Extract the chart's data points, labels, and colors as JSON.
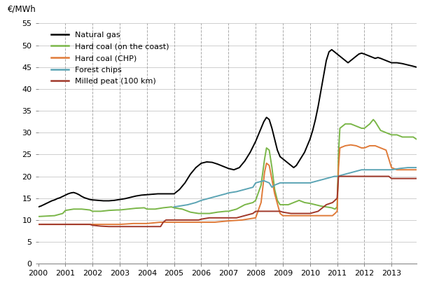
{
  "ylabel": "€/MWh",
  "xlim": [
    2000,
    2013.92
  ],
  "ylim": [
    0,
    55
  ],
  "yticks": [
    0,
    5,
    10,
    15,
    20,
    25,
    30,
    35,
    40,
    45,
    50,
    55
  ],
  "xticks": [
    2000,
    2001,
    2002,
    2003,
    2004,
    2005,
    2006,
    2007,
    2008,
    2009,
    2010,
    2011,
    2012,
    2013
  ],
  "series": {
    "Natural gas": {
      "color": "#000000",
      "lw": 1.4,
      "data_x": [
        2000.0,
        2000.1,
        2000.2,
        2000.3,
        2000.4,
        2000.5,
        2000.6,
        2000.7,
        2000.8,
        2000.9,
        2001.0,
        2001.1,
        2001.2,
        2001.3,
        2001.4,
        2001.5,
        2001.6,
        2001.7,
        2001.8,
        2001.9,
        2002.0,
        2002.2,
        2002.4,
        2002.6,
        2002.8,
        2003.0,
        2003.2,
        2003.4,
        2003.6,
        2003.8,
        2004.0,
        2004.2,
        2004.4,
        2004.6,
        2004.8,
        2005.0,
        2005.2,
        2005.4,
        2005.5,
        2005.6,
        2005.8,
        2006.0,
        2006.2,
        2006.4,
        2006.6,
        2006.8,
        2007.0,
        2007.2,
        2007.4,
        2007.6,
        2007.8,
        2008.0,
        2008.1,
        2008.2,
        2008.3,
        2008.4,
        2008.5,
        2008.6,
        2008.7,
        2008.8,
        2008.9,
        2009.0,
        2009.1,
        2009.2,
        2009.3,
        2009.4,
        2009.5,
        2009.6,
        2009.7,
        2009.8,
        2009.9,
        2010.0,
        2010.1,
        2010.2,
        2010.3,
        2010.4,
        2010.5,
        2010.6,
        2010.7,
        2010.8,
        2010.9,
        2011.0,
        2011.1,
        2011.2,
        2011.3,
        2011.4,
        2011.5,
        2011.6,
        2011.7,
        2011.8,
        2011.9,
        2012.0,
        2012.2,
        2012.4,
        2012.5,
        2012.6,
        2012.8,
        2013.0,
        2013.2,
        2013.4,
        2013.6,
        2013.8,
        2013.92
      ],
      "data_y": [
        13.0,
        13.2,
        13.5,
        13.8,
        14.1,
        14.4,
        14.6,
        14.9,
        15.1,
        15.4,
        15.7,
        16.0,
        16.2,
        16.3,
        16.1,
        15.8,
        15.4,
        15.1,
        14.9,
        14.7,
        14.6,
        14.5,
        14.4,
        14.4,
        14.5,
        14.7,
        14.9,
        15.2,
        15.5,
        15.7,
        15.8,
        15.9,
        16.0,
        16.0,
        16.0,
        16.0,
        17.0,
        18.5,
        19.5,
        20.5,
        22.0,
        23.0,
        23.3,
        23.2,
        22.8,
        22.3,
        21.8,
        21.5,
        22.0,
        23.5,
        25.5,
        28.0,
        29.5,
        31.0,
        32.5,
        33.5,
        33.0,
        31.0,
        28.5,
        26.0,
        24.5,
        24.0,
        23.5,
        23.0,
        22.5,
        22.0,
        22.5,
        23.5,
        24.5,
        25.5,
        27.0,
        28.5,
        30.5,
        33.0,
        36.0,
        39.5,
        43.0,
        46.5,
        48.5,
        49.0,
        48.5,
        48.0,
        47.5,
        47.0,
        46.5,
        46.0,
        46.5,
        47.0,
        47.5,
        48.0,
        48.2,
        48.0,
        47.5,
        47.0,
        47.2,
        47.0,
        46.5,
        46.0,
        46.0,
        45.8,
        45.5,
        45.2,
        45.0
      ]
    },
    "Hard coal (on the coast)": {
      "color": "#7ab648",
      "lw": 1.4,
      "data_x": [
        2000.0,
        2000.3,
        2000.6,
        2000.9,
        2001.0,
        2001.3,
        2001.6,
        2001.9,
        2002.0,
        2002.3,
        2002.6,
        2002.9,
        2003.0,
        2003.3,
        2003.6,
        2003.9,
        2004.0,
        2004.3,
        2004.6,
        2004.9,
        2005.0,
        2005.3,
        2005.6,
        2005.9,
        2006.0,
        2006.3,
        2006.6,
        2006.9,
        2007.0,
        2007.3,
        2007.6,
        2007.9,
        2008.0,
        2008.2,
        2008.33,
        2008.4,
        2008.5,
        2008.6,
        2008.7,
        2008.8,
        2008.9,
        2009.0,
        2009.2,
        2009.4,
        2009.6,
        2009.8,
        2010.0,
        2010.2,
        2010.4,
        2010.6,
        2010.8,
        2010.92,
        2011.0,
        2011.05,
        2011.1,
        2011.3,
        2011.5,
        2011.7,
        2011.9,
        2012.0,
        2012.2,
        2012.33,
        2012.4,
        2012.5,
        2012.6,
        2012.8,
        2013.0,
        2013.2,
        2013.4,
        2013.6,
        2013.8,
        2013.92
      ],
      "data_y": [
        10.8,
        10.9,
        11.0,
        11.5,
        12.2,
        12.5,
        12.5,
        12.3,
        12.0,
        12.0,
        12.2,
        12.3,
        12.3,
        12.5,
        12.7,
        12.8,
        12.5,
        12.5,
        12.8,
        13.0,
        12.8,
        12.5,
        11.8,
        11.5,
        11.5,
        11.5,
        11.8,
        12.0,
        12.0,
        12.5,
        13.5,
        14.0,
        14.5,
        18.0,
        24.0,
        26.5,
        26.0,
        22.0,
        17.0,
        14.5,
        13.5,
        13.5,
        13.5,
        14.0,
        14.5,
        14.0,
        13.8,
        13.5,
        13.2,
        13.0,
        12.8,
        12.5,
        13.0,
        25.0,
        31.0,
        32.0,
        32.0,
        31.5,
        31.0,
        31.0,
        32.0,
        33.0,
        32.5,
        31.5,
        30.5,
        30.0,
        29.5,
        29.5,
        29.0,
        29.0,
        29.0,
        28.5
      ]
    },
    "Hard coal (CHP)": {
      "color": "#e07b39",
      "lw": 1.4,
      "data_x": [
        2000.0,
        2000.5,
        2001.0,
        2001.5,
        2002.0,
        2002.5,
        2003.0,
        2003.5,
        2004.0,
        2004.5,
        2005.0,
        2005.5,
        2006.0,
        2006.5,
        2007.0,
        2007.5,
        2008.0,
        2008.2,
        2008.33,
        2008.4,
        2008.5,
        2008.7,
        2008.9,
        2009.0,
        2009.3,
        2009.6,
        2009.9,
        2010.0,
        2010.3,
        2010.6,
        2010.83,
        2010.92,
        2011.0,
        2011.05,
        2011.1,
        2011.3,
        2011.5,
        2011.7,
        2011.9,
        2012.0,
        2012.2,
        2012.4,
        2012.6,
        2012.8,
        2013.0,
        2013.2,
        2013.4,
        2013.6,
        2013.8,
        2013.92
      ],
      "data_y": [
        9.0,
        9.0,
        9.0,
        9.0,
        9.0,
        9.0,
        9.0,
        9.2,
        9.2,
        9.5,
        9.5,
        9.5,
        9.5,
        9.5,
        9.8,
        10.0,
        10.5,
        14.0,
        21.0,
        23.0,
        22.5,
        16.0,
        11.5,
        11.0,
        11.0,
        11.0,
        11.0,
        11.0,
        11.0,
        11.0,
        11.0,
        11.5,
        12.0,
        22.0,
        26.5,
        27.0,
        27.2,
        27.0,
        26.5,
        26.5,
        27.0,
        27.0,
        26.5,
        26.0,
        22.0,
        21.5,
        21.5,
        21.5,
        21.5,
        21.5
      ]
    },
    "Forest chips": {
      "color": "#5ba4b4",
      "lw": 1.4,
      "data_x": [
        2005.0,
        2005.2,
        2005.5,
        2005.8,
        2006.0,
        2006.3,
        2006.6,
        2006.9,
        2007.0,
        2007.3,
        2007.6,
        2007.9,
        2008.0,
        2008.3,
        2008.5,
        2008.6,
        2008.7,
        2008.9,
        2009.0,
        2009.3,
        2009.6,
        2009.9,
        2010.0,
        2010.3,
        2010.6,
        2010.9,
        2011.0,
        2011.3,
        2011.6,
        2011.9,
        2012.0,
        2012.3,
        2012.6,
        2012.9,
        2013.0,
        2013.3,
        2013.6,
        2013.92
      ],
      "data_y": [
        13.0,
        13.2,
        13.5,
        14.0,
        14.5,
        15.0,
        15.5,
        16.0,
        16.2,
        16.5,
        17.0,
        17.5,
        18.5,
        19.0,
        18.5,
        17.5,
        18.0,
        18.5,
        18.5,
        18.5,
        18.5,
        18.5,
        18.5,
        19.0,
        19.5,
        20.0,
        20.0,
        20.5,
        21.0,
        21.5,
        21.5,
        21.5,
        21.5,
        21.5,
        21.5,
        21.8,
        22.0,
        22.0
      ]
    },
    "Milled peat (100 km)": {
      "color": "#a0382a",
      "lw": 1.4,
      "data_x": [
        2000.0,
        2000.3,
        2000.6,
        2000.9,
        2001.0,
        2001.3,
        2001.5,
        2001.7,
        2001.9,
        2002.0,
        2002.3,
        2002.6,
        2002.9,
        2003.0,
        2003.3,
        2003.6,
        2003.9,
        2004.0,
        2004.3,
        2004.5,
        2004.6,
        2004.7,
        2004.9,
        2005.0,
        2005.3,
        2005.6,
        2005.9,
        2006.0,
        2006.3,
        2006.6,
        2006.9,
        2007.0,
        2007.3,
        2007.6,
        2007.9,
        2008.0,
        2008.3,
        2008.5,
        2008.7,
        2008.9,
        2009.0,
        2009.3,
        2009.6,
        2009.9,
        2010.0,
        2010.3,
        2010.6,
        2010.83,
        2010.92,
        2011.0,
        2011.05,
        2011.1,
        2011.3,
        2011.5,
        2011.7,
        2011.9,
        2012.0,
        2012.3,
        2012.6,
        2012.9,
        2013.0,
        2013.3,
        2013.6,
        2013.92
      ],
      "data_y": [
        9.0,
        9.0,
        9.0,
        9.0,
        9.0,
        9.0,
        9.0,
        9.0,
        9.0,
        8.8,
        8.6,
        8.5,
        8.5,
        8.5,
        8.5,
        8.5,
        8.5,
        8.5,
        8.5,
        8.5,
        9.5,
        10.0,
        10.0,
        10.0,
        10.0,
        10.0,
        10.0,
        10.2,
        10.5,
        10.5,
        10.5,
        10.5,
        10.5,
        11.0,
        11.5,
        12.0,
        12.0,
        12.0,
        12.0,
        12.0,
        11.8,
        11.5,
        11.5,
        11.5,
        11.5,
        12.0,
        13.5,
        14.0,
        14.5,
        15.0,
        20.0,
        20.0,
        20.0,
        20.0,
        20.0,
        20.0,
        20.0,
        20.0,
        20.0,
        20.0,
        19.5,
        19.5,
        19.5,
        19.5
      ]
    }
  },
  "vlines_x": [
    2001,
    2002,
    2003,
    2004,
    2005,
    2006,
    2007,
    2008,
    2009,
    2010,
    2011,
    2012,
    2013
  ],
  "background_color": "#ffffff",
  "grid_color": "#c8c8c8",
  "spine_color": "#888888"
}
